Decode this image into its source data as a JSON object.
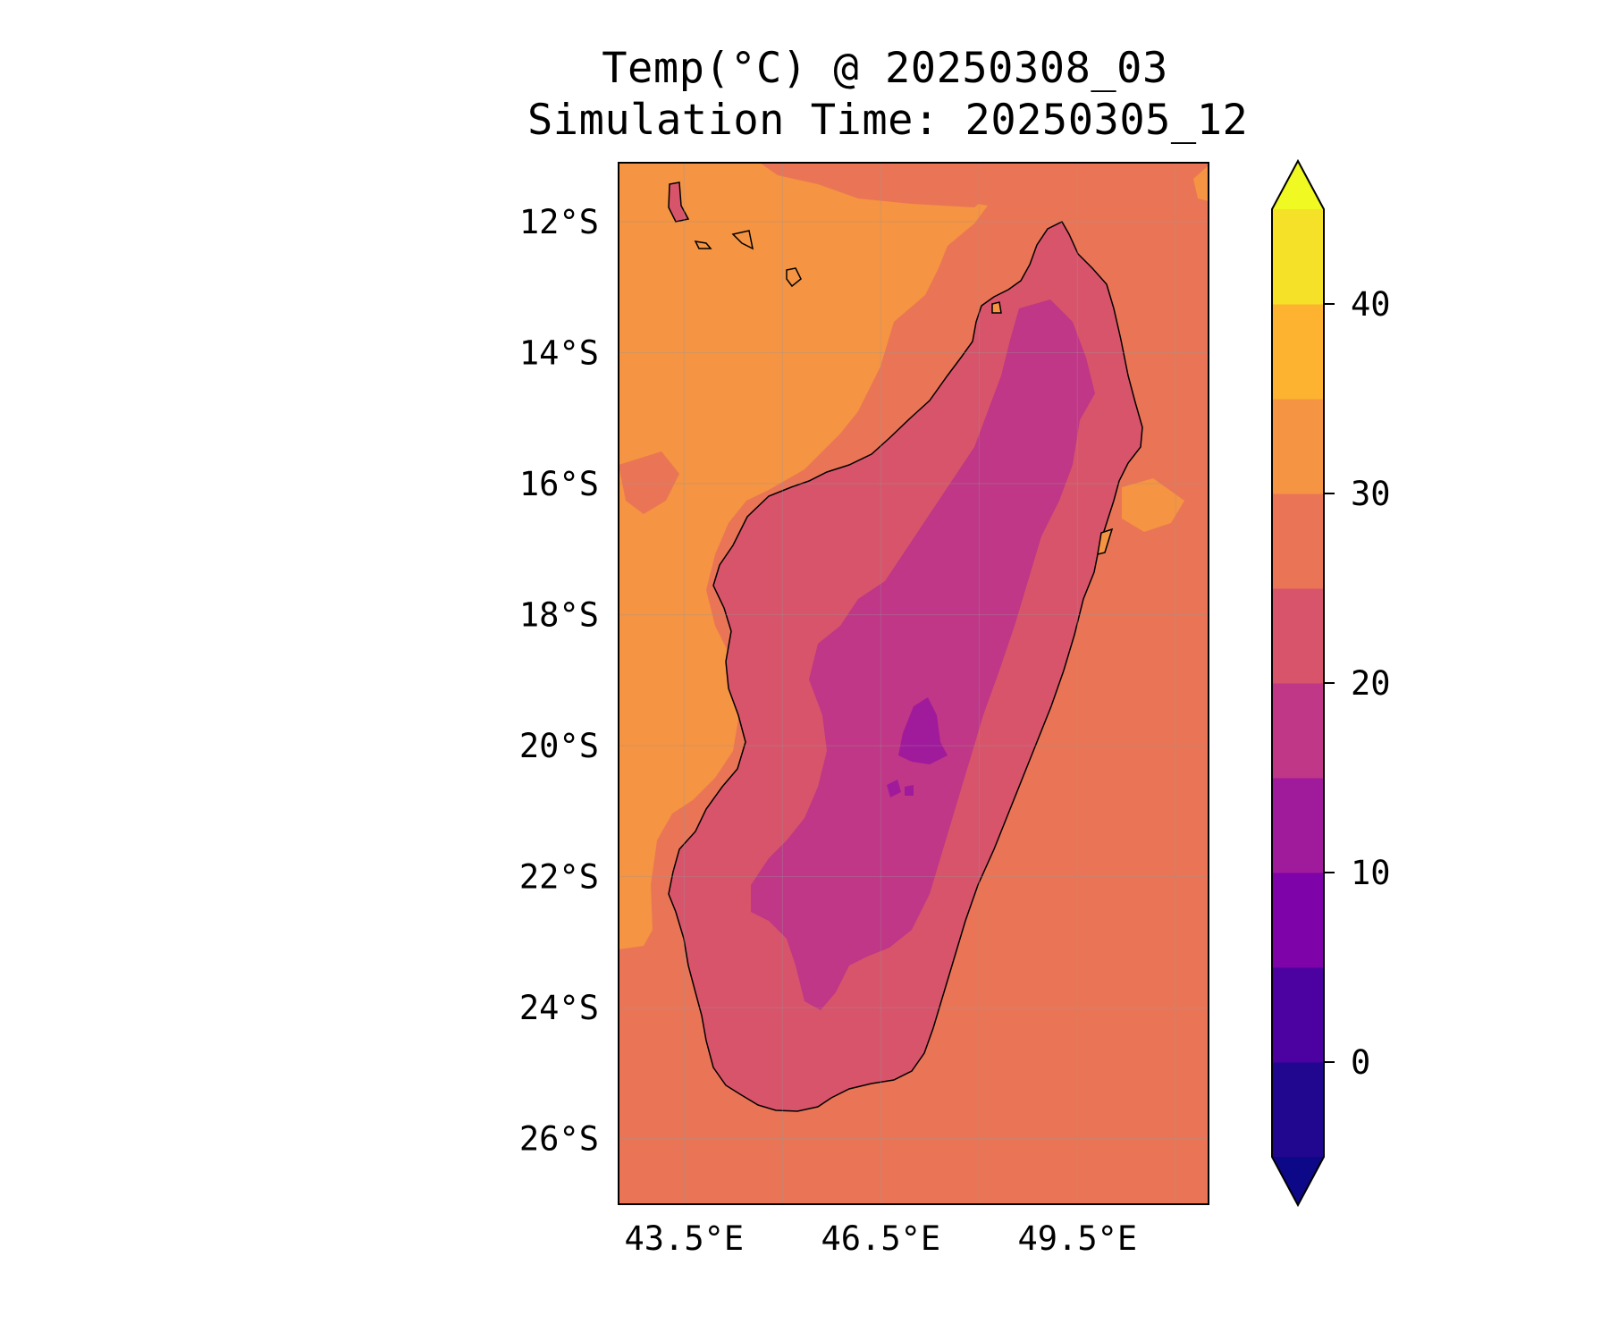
{
  "title": "Temp(°C) @ 20250308_03",
  "subtitle": "Simulation Time: 20250305_12",
  "map": {
    "region": "Madagascar",
    "field": "Temperature",
    "unit": "°C",
    "lon_range": [
      42.5,
      51.5
    ],
    "lat_range": [
      -27.0,
      -11.1
    ],
    "lat_ticks": [
      {
        "value": -12,
        "label": "12°S"
      },
      {
        "value": -14,
        "label": "14°S"
      },
      {
        "value": -16,
        "label": "16°S"
      },
      {
        "value": -18,
        "label": "18°S"
      },
      {
        "value": -20,
        "label": "20°S"
      },
      {
        "value": -22,
        "label": "22°S"
      },
      {
        "value": -24,
        "label": "24°S"
      },
      {
        "value": -26,
        "label": "26°S"
      }
    ],
    "lon_ticks": [
      {
        "value": 43.5,
        "label": "43.5°E"
      },
      {
        "value": 46.5,
        "label": "46.5°E"
      },
      {
        "value": 49.5,
        "label": "49.5°E"
      }
    ],
    "gridlines": true,
    "colors": {
      "ocean_warm": "#e97556",
      "ocean_hot": "#f59442",
      "land_mild": "#d8546b",
      "land_cool": "#bf3786",
      "land_cold": "#a01a9c",
      "land_coldest": "#8a0ea5",
      "coastline": "#000000"
    }
  },
  "colorbar": {
    "ticks": [
      {
        "value": 0,
        "label": "0"
      },
      {
        "value": 10,
        "label": "10"
      },
      {
        "value": 20,
        "label": "20"
      },
      {
        "value": 30,
        "label": "30"
      },
      {
        "value": 40,
        "label": "40"
      }
    ],
    "bands": [
      {
        "from": -5,
        "to": 0,
        "color": "#21078f"
      },
      {
        "from": 0,
        "to": 5,
        "color": "#4c02a1"
      },
      {
        "from": 5,
        "to": 10,
        "color": "#7e03a8"
      },
      {
        "from": 10,
        "to": 15,
        "color": "#a01a9c"
      },
      {
        "from": 15,
        "to": 20,
        "color": "#bf3786"
      },
      {
        "from": 20,
        "to": 25,
        "color": "#d8546b"
      },
      {
        "from": 25,
        "to": 30,
        "color": "#e97556"
      },
      {
        "from": 30,
        "to": 35,
        "color": "#f59442"
      },
      {
        "from": 35,
        "to": 40,
        "color": "#fdb32f"
      },
      {
        "from": 40,
        "to": 45,
        "color": "#f5e127"
      }
    ],
    "extend_under_color": "#0d0887",
    "extend_over_color": "#f0f921",
    "range": [
      -5,
      45
    ]
  }
}
